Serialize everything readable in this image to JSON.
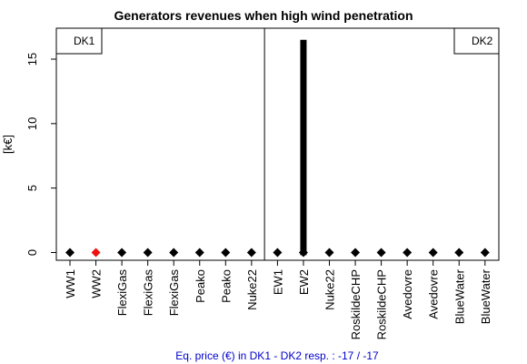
{
  "chart_data": {
    "type": "scatter",
    "title": "Generators revenues when high wind penetration",
    "xlabel": "",
    "ylabel": "[k€]",
    "categories": [
      "WW1",
      "WW2",
      "FlexiGas",
      "FlexiGas",
      "FlexiGas",
      "Peako",
      "Peako",
      "Nuke22",
      "EW1",
      "EW2",
      "Nuke22",
      "RoskildeCHP",
      "RoskildeCHP",
      "Avedovre",
      "Avedovre",
      "BlueWater",
      "BlueWater"
    ],
    "values": [
      0,
      0,
      0,
      0,
      0,
      0,
      0,
      0,
      0,
      0,
      0,
      0,
      0,
      0,
      0,
      0,
      0
    ],
    "point_colors": [
      "#000000",
      "#ee1111",
      "#000000",
      "#000000",
      "#000000",
      "#000000",
      "#000000",
      "#000000",
      "#000000",
      "#000000",
      "#000000",
      "#000000",
      "#000000",
      "#000000",
      "#000000",
      "#000000",
      "#000000"
    ],
    "error_bar": {
      "category_index": 9,
      "low": -0.2,
      "high": 16.5
    },
    "ylim": [
      -0.6,
      17.4
    ],
    "y_ticks": [
      0,
      5,
      10,
      15
    ],
    "region_labels": [
      "DK1",
      "DK2"
    ],
    "footer": "Eq. price (€) in DK1 - DK2 resp. : -17 / -17",
    "grid": false
  }
}
